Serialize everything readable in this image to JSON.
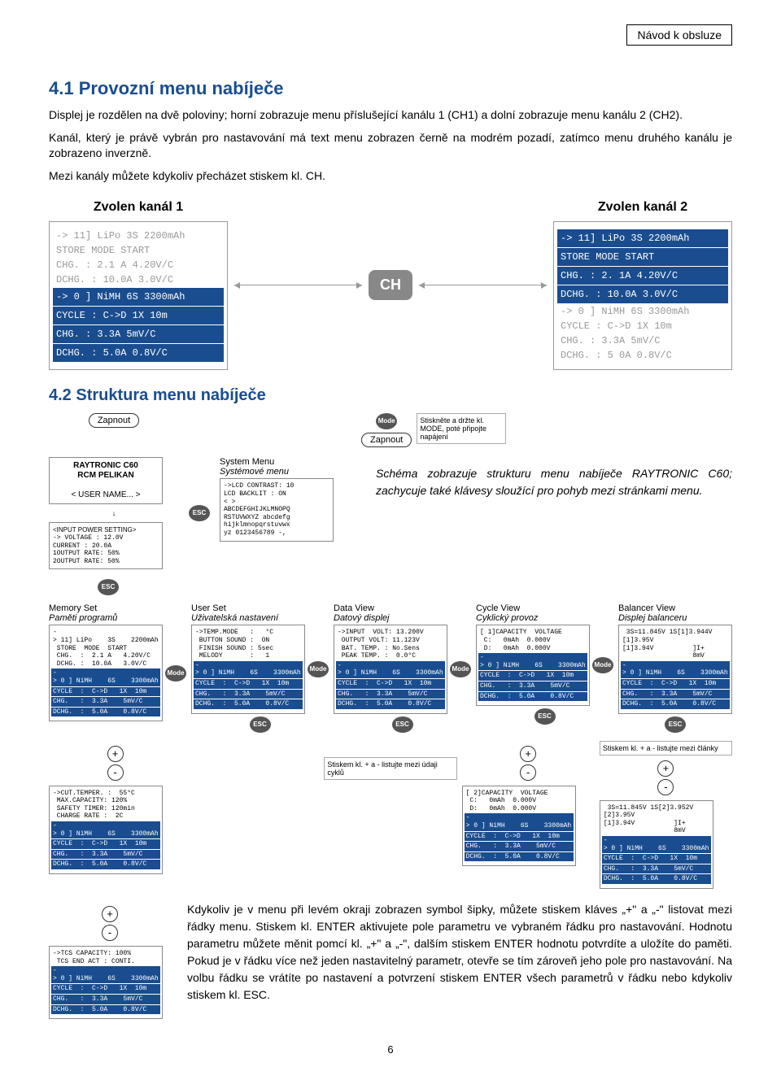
{
  "header": {
    "title": "Návod k obsluze"
  },
  "section41": {
    "heading": "4.1 Provozní menu nabíječe",
    "p1": "Displej je rozdělen na dvě poloviny; horní zobrazuje menu příslušející kanálu 1 (CH1) a dolní zobrazuje menu kanálu 2 (CH2).",
    "p2": "Kanál, který je právě vybrán pro nastavování má text menu zobrazen černě na modrém pozadí, zatímco menu druhého kanálu je zobrazeno inverzně.",
    "p3": "Mezi kanály můžete kdykoliv přecházet stiskem kl. CH."
  },
  "displays": {
    "left_title": "Zvolen kanál 1",
    "right_title": "Zvolen kanál 2",
    "ch_label": "CH",
    "lcd_top": [
      "-> 11] LiPo      3S      2200mAh",
      "STORE  MODE  START",
      "CHG.    :    2.1 A     4.20V/C",
      "DCHG.   :    10.0A     3.0V/C"
    ],
    "lcd_bot": [
      "->  0 ] NiMH     6S     3300mAh",
      "CYCLE   :   C->D    1X  10m",
      "CHG.    :   3.3A      5mV/C",
      "DCHG.   :   5.0A      0.8V/C"
    ],
    "lcd_top_r": [
      "-> 11] LiPo      3S      2200mAh",
      "STORE  MODE  START",
      "CHG.    :    2. 1A     4.20V/C",
      "DCHG.   :    10.0A     3.0V/C"
    ],
    "lcd_bot_r": [
      "->  0 ] NiMH     6S     3300mAh",
      " CYCLE  :   C->D    1X  10m",
      " CHG.   :   3.3A      5mV/C",
      " DCHG.  :   5 0A      0.8V/C"
    ]
  },
  "section42": {
    "heading": "4.2 Struktura menu nabíječe"
  },
  "flow": {
    "zapnout": "Zapnout",
    "mode": "Mode",
    "mode_note": "Stiskněte a držte kl. MODE, poté připojte napájení",
    "esc": "ESC",
    "plus": "+",
    "minus": "-",
    "startup": {
      "line1": "RAYTRONIC C60",
      "line2": "RCM PELIKAN",
      "line3": "< USER NAME... >"
    },
    "power": {
      "title": "<INPUT POWER SETTING>",
      "rows": [
        "-> VOLTAGE   : 12.0V",
        "   CURRENT   : 20.0A",
        "   1OUTPUT RATE: 50%",
        "   2OUTPUT RATE: 50%"
      ]
    },
    "sysmenu": {
      "title_en": "System Menu",
      "title_cz": "Systémové menu",
      "rows": [
        "->LCD CONTRAST:  10",
        "  LCD BACKLIT :  ON",
        "  <               >",
        "  ABCDEFGHIJKLMNOPQ",
        "  RSTUVWXYZ abcdefg",
        "  hijklmnopqrstuvwx",
        "  yz 0123456789 -,"
      ]
    },
    "schema_text": "Schéma zobrazuje strukturu menu nabíječe RAYTRONIC C60; zachycuje také klávesy sloužící pro pohyb mezi stránkami menu.",
    "cols": [
      {
        "en": "Memory Set",
        "cz": "Paměti programů",
        "rows_top": [
          "-> 11] LiPo    3S    2200mAh",
          " STORE  MODE  START",
          " CHG.  :  2.1 A   4.20V/C",
          " DCHG. :  10.0A   3.0V/C"
        ],
        "rows_bot_inv": [
          "-> 0 ] NiMH    6S    3300mAh",
          "CYCLE  :  C->D   1X  10m",
          "CHG.   :  3.3A    5mV/C",
          "DCHG.  :  5.0A    0.8V/C"
        ]
      },
      {
        "en": "User Set",
        "cz": "Uživatelská nastavení",
        "rows_top": [
          "->TEMP.MODE   :   °C",
          " BUTTON SOUND :  ON",
          " FINISH SOUND : 5sec",
          " MELODY       :   1"
        ],
        "rows_bot_inv": [
          "-> 0 ] NiMH    6S    3300mAh",
          "CYCLE  :  C->D   1X  10m",
          "CHG.   :  3.3A    5mV/C",
          "DCHG.  :  5.0A    0.8V/C"
        ]
      },
      {
        "en": "Data View",
        "cz": "Datový displej",
        "rows_top": [
          "->INPUT  VOLT: 13.200V",
          " OUTPUT VOLT: 11.123V",
          " BAT. TEMP. : No.Sens",
          " PEAK TEMP. :  0.0°C"
        ],
        "rows_bot_inv": [
          "-> 0 ] NiMH    6S    3300mAh",
          "CYCLE  :  C->D   1X  10m",
          "CHG.   :  3.3A    5mV/C",
          "DCHG.  :  5.0A    0.8V/C"
        ]
      },
      {
        "en": "Cycle View",
        "cz": "Cyklický provoz",
        "rows_top": [
          "[ 1]CAPACITY  VOLTAGE",
          " C:   0mAh  0.000V",
          " D:   0mAh  0.000V",
          ""
        ],
        "rows_bot_inv": [
          "-> 0 ] NiMH    6S    3300mAh",
          "CYCLE  :  C->D   1X  10m",
          "CHG.   :  3.3A    5mV/C",
          "DCHG.  :  5.0A    0.8V/C"
        ]
      },
      {
        "en": "Balancer View",
        "cz": "Displej balanceru",
        "rows_top": [
          " 3S=11.845V 1S[1]3.944V",
          "[1]3.95V",
          "[1]3.94V          ]I+",
          "                  8mV"
        ],
        "rows_bot_inv": [
          "-> 0 ] NiMH    6S    3300mAh",
          "CYCLE  :  C->D   1X  10m",
          "CHG.   :  3.3A    5mV/C",
          "DCHG.  :  5.0A    0.8V/C"
        ]
      }
    ],
    "note_cycle": "Stiskem kl. + a - listujte mezi údaji cyklů",
    "note_bal": "Stiskem kl. + a - listujte mezi články",
    "second_boxes": {
      "a": {
        "rows_top": [
          "->CUT.TEMPER. :  55°C",
          " MAX.CAPACITY: 120%",
          " SAFETY TIMER: 120min",
          " CHARGE RATE :  2C"
        ],
        "rows_bot_inv": [
          "-> 0 ] NiMH    6S    3300mAh",
          "CYCLE  :  C->D   1X  10m",
          "CHG.   :  3.3A    5mV/C",
          "DCHG.  :  5.0A    0.8V/C"
        ]
      },
      "cycle2": {
        "rows_top": [
          "[ 2]CAPACITY  VOLTAGE",
          " C:   0mAh  0.000V",
          " D:   0mAh  0.000V",
          ""
        ],
        "rows_bot_inv": [
          "-> 0 ] NiMH    6S    3300mAh",
          "CYCLE  :  C->D   1X  10m",
          "CHG.   :  3.3A    5mV/C",
          "DCHG.  :  5.0A    0.8V/C"
        ]
      },
      "bal2": {
        "rows_top": [
          " 3S=11.845V 1S[2]3.952V",
          "[2]3.95V",
          "[1]3.94V          ]I+",
          "                  8mV"
        ],
        "rows_bot_inv": [
          "-> 0 ] NiMH    6S    3300mAh",
          "CYCLE  :  C->D   1X  10m",
          "CHG.   :  3.3A    5mV/C",
          "DCHG.  :  5.0A    0.8V/C"
        ]
      },
      "tcs": {
        "rows_top": [
          "->TCS CAPACITY: 100%",
          " TCS END ACT : CONTI.",
          "",
          ""
        ],
        "rows_bot_inv": [
          "-> 0 ] NiMH    6S    3300mAh",
          "CYCLE  :  C->D   1X  10m",
          "CHG.   :  3.3A    5mV/C",
          "DCHG.  :  5.0A    0.8V/C"
        ]
      }
    }
  },
  "bottom_text": "Kdykoliv je v menu při levém okraji zobrazen symbol šipky, můžete stiskem kláves „+\" a „-\" listovat mezi řádky menu. Stiskem kl. ENTER aktivujete pole parametru ve vybraném řádku pro nastavování. Hodnotu parametru můžete měnit pomcí kl. „+\" a „-\", dalším stiskem ENTER hodnotu potvrdíte a uložíte do paměti. Pokud je v řádku více než jeden nastavitelný parametr, otevře se tím zároveň jeho pole pro nastavování. Na volbu řádku se vrátíte po nastavení a potvrzení stiskem ENTER všech parametrů v řádku nebo kdykoliv stiskem kl. ESC.",
  "page_num": "6"
}
